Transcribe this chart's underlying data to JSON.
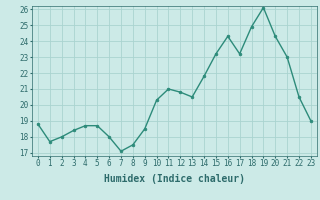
{
  "x": [
    0,
    1,
    2,
    3,
    4,
    5,
    6,
    7,
    8,
    9,
    10,
    11,
    12,
    13,
    14,
    15,
    16,
    17,
    18,
    19,
    20,
    21,
    22,
    23
  ],
  "y": [
    18.8,
    17.7,
    18.0,
    18.4,
    18.7,
    18.7,
    18.0,
    17.1,
    17.5,
    18.5,
    20.3,
    21.0,
    20.8,
    20.5,
    21.8,
    23.2,
    24.3,
    23.2,
    24.9,
    26.1,
    24.3,
    23.0,
    20.5,
    19.0
  ],
  "line_color": "#2d8b7a",
  "bg_color": "#cceae7",
  "grid_color": "#aad4d0",
  "text_color": "#2d6b6b",
  "xlabel": "Humidex (Indice chaleur)",
  "ylim": [
    17,
    26
  ],
  "xlim": [
    -0.5,
    23.5
  ],
  "yticks": [
    17,
    18,
    19,
    20,
    21,
    22,
    23,
    24,
    25,
    26
  ],
  "xticks": [
    0,
    1,
    2,
    3,
    4,
    5,
    6,
    7,
    8,
    9,
    10,
    11,
    12,
    13,
    14,
    15,
    16,
    17,
    18,
    19,
    20,
    21,
    22,
    23
  ],
  "tick_fontsize": 5.5,
  "xlabel_fontsize": 7.0,
  "marker_size": 2.0,
  "line_width": 1.0
}
